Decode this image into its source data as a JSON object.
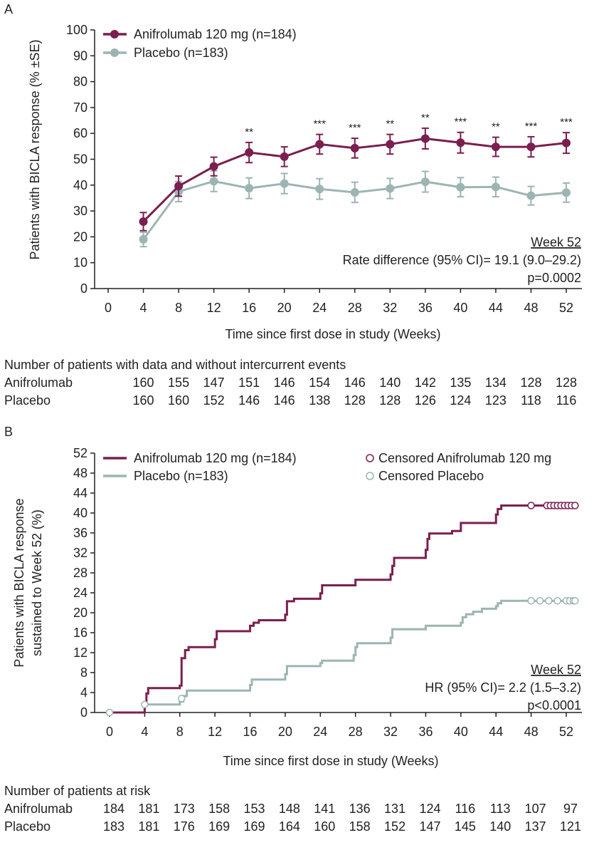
{
  "colors": {
    "anifrolumab": "#7a1f4f",
    "placebo": "#9cb5b3",
    "text": "#222222"
  },
  "chart_data": [
    {
      "panel_label": "A",
      "type": "line",
      "xlabel": "Time since first dose in study (Weeks)",
      "ylabel": "Patients with BICLA response (% ±SE)",
      "xlim": [
        0,
        52
      ],
      "ylim": [
        0,
        100
      ],
      "x_ticks": [
        0,
        4,
        8,
        12,
        16,
        20,
        24,
        28,
        32,
        36,
        40,
        44,
        48,
        52
      ],
      "y_ticks": [
        0,
        10,
        20,
        30,
        40,
        50,
        60,
        70,
        80,
        90,
        100
      ],
      "series": [
        {
          "name": "Anifrolumab 120 mg (n=184)",
          "x": [
            4,
            8,
            12,
            16,
            20,
            24,
            28,
            32,
            36,
            40,
            44,
            48,
            52
          ],
          "values": [
            25.9,
            39.6,
            47.2,
            52.6,
            51.0,
            55.8,
            54.3,
            55.8,
            58.0,
            56.4,
            54.8,
            54.8,
            56.3
          ],
          "se": [
            3.5,
            3.9,
            3.6,
            3.9,
            3.8,
            3.8,
            3.8,
            3.8,
            4.0,
            4.0,
            3.7,
            3.9,
            4.0
          ]
        },
        {
          "name": "Placebo (n=183)",
          "x": [
            4,
            8,
            12,
            16,
            20,
            24,
            28,
            32,
            36,
            40,
            44,
            48,
            52
          ],
          "values": [
            19.0,
            37.5,
            41.5,
            38.8,
            40.6,
            38.5,
            37.2,
            38.7,
            41.3,
            39.2,
            39.3,
            35.9,
            37.1
          ],
          "se": [
            2.8,
            3.9,
            4.0,
            4.0,
            3.9,
            4.0,
            3.9,
            3.9,
            4.0,
            3.7,
            3.8,
            3.6,
            3.7
          ]
        }
      ],
      "significance": [
        {
          "x": 16,
          "label": "**"
        },
        {
          "x": 24,
          "label": "***"
        },
        {
          "x": 28,
          "label": "***"
        },
        {
          "x": 32,
          "label": "**"
        },
        {
          "x": 36,
          "label": "**"
        },
        {
          "x": 40,
          "label": "***"
        },
        {
          "x": 44,
          "label": "**"
        },
        {
          "x": 48,
          "label": "***"
        },
        {
          "x": 52,
          "label": "***"
        }
      ],
      "annotation": [
        "Week 52",
        "Rate difference (95% CI)= 19.1 (9.0–29.2)",
        "p=0.0002"
      ],
      "table": {
        "title": "Number of patients with data and without intercurrent events",
        "rows": [
          {
            "label": "Anifrolumab",
            "values": [
              "160",
              "155",
              "147",
              "151",
              "146",
              "154",
              "146",
              "140",
              "142",
              "135",
              "134",
              "128",
              "128"
            ]
          },
          {
            "label": "Placebo",
            "values": [
              "160",
              "160",
              "152",
              "146",
              "146",
              "138",
              "128",
              "128",
              "126",
              "124",
              "123",
              "118",
              "116"
            ]
          }
        ]
      }
    },
    {
      "panel_label": "B",
      "type": "line",
      "subtype": "kaplan-meier",
      "xlabel": "Time since first dose in study (Weeks)",
      "ylabel": [
        "Patients with BICLA response",
        "sustained to Week 52 (%)"
      ],
      "xlim": [
        0,
        52
      ],
      "ylim": [
        0,
        52
      ],
      "x_ticks": [
        0,
        4,
        8,
        12,
        16,
        20,
        24,
        28,
        32,
        36,
        40,
        44,
        48,
        52
      ],
      "y_ticks": [
        0,
        4,
        8,
        12,
        16,
        20,
        24,
        28,
        32,
        36,
        40,
        44,
        48,
        52
      ],
      "series": [
        {
          "name": "Anifrolumab 120 mg (n=184)",
          "censored_label": "Censored Anifrolumab 120 mg",
          "steps": [
            [
              0,
              0
            ],
            [
              4.0,
              1.9
            ],
            [
              4.2,
              3.8
            ],
            [
              4.4,
              4.9
            ],
            [
              8.0,
              5.4
            ],
            [
              8.2,
              10.9
            ],
            [
              8.6,
              12.5
            ],
            [
              9.0,
              13.1
            ],
            [
              12.0,
              14.7
            ],
            [
              12.2,
              16.3
            ],
            [
              16.0,
              17.4
            ],
            [
              16.4,
              18.0
            ],
            [
              17.0,
              18.5
            ],
            [
              20.0,
              19.6
            ],
            [
              20.2,
              22.3
            ],
            [
              21.0,
              22.8
            ],
            [
              24.0,
              23.9
            ],
            [
              24.2,
              25.5
            ],
            [
              28.0,
              26.6
            ],
            [
              32.0,
              27.7
            ],
            [
              32.2,
              29.4
            ],
            [
              32.4,
              31.0
            ],
            [
              36.0,
              32.6
            ],
            [
              36.2,
              34.8
            ],
            [
              36.4,
              35.9
            ],
            [
              39.0,
              36.4
            ],
            [
              40.0,
              38.0
            ],
            [
              44.0,
              39.7
            ],
            [
              44.2,
              40.8
            ],
            [
              44.6,
              41.5
            ],
            [
              53.0,
              41.5
            ]
          ],
          "censored_x": [
            48,
            49.8,
            50.2,
            50.6,
            51,
            51.4,
            51.8,
            52.2,
            52.6,
            53
          ]
        },
        {
          "name": "Placebo (n=183)",
          "censored_label": "Censored Placebo",
          "steps": [
            [
              0,
              0
            ],
            [
              4.0,
              1.6
            ],
            [
              8.0,
              2.2
            ],
            [
              8.4,
              3.3
            ],
            [
              8.8,
              4.4
            ],
            [
              16.0,
              5.5
            ],
            [
              16.2,
              6.6
            ],
            [
              20.0,
              7.7
            ],
            [
              20.2,
              9.3
            ],
            [
              24.0,
              9.9
            ],
            [
              24.2,
              10.4
            ],
            [
              27.8,
              11.5
            ],
            [
              28.0,
              13.1
            ],
            [
              28.2,
              13.9
            ],
            [
              32.0,
              15.0
            ],
            [
              32.2,
              16.7
            ],
            [
              36.0,
              17.4
            ],
            [
              40.0,
              18.0
            ],
            [
              40.2,
              19.1
            ],
            [
              40.6,
              19.7
            ],
            [
              41.4,
              20.2
            ],
            [
              42.4,
              20.8
            ],
            [
              44.0,
              21.3
            ],
            [
              44.2,
              21.9
            ],
            [
              44.6,
              22.4
            ],
            [
              53.0,
              22.4
            ]
          ],
          "censored_x": [
            48,
            49,
            50,
            51,
            52,
            52.4,
            52.8,
            53
          ]
        }
      ],
      "start_marker": {
        "x": 0,
        "y": 0
      },
      "annotation": [
        "Week 52",
        "HR (95% CI)= 2.2 (1.5–3.2)",
        "p<0.0001"
      ],
      "table": {
        "title": "Number of patients at risk",
        "rows": [
          {
            "label": "Anifrolumab",
            "values": [
              "184",
              "181",
              "173",
              "158",
              "153",
              "148",
              "141",
              "136",
              "131",
              "124",
              "116",
              "113",
              "107",
              "97"
            ]
          },
          {
            "label": "Placebo",
            "values": [
              "183",
              "181",
              "176",
              "169",
              "169",
              "164",
              "160",
              "158",
              "152",
              "147",
              "145",
              "140",
              "137",
              "121"
            ]
          }
        ]
      }
    }
  ]
}
